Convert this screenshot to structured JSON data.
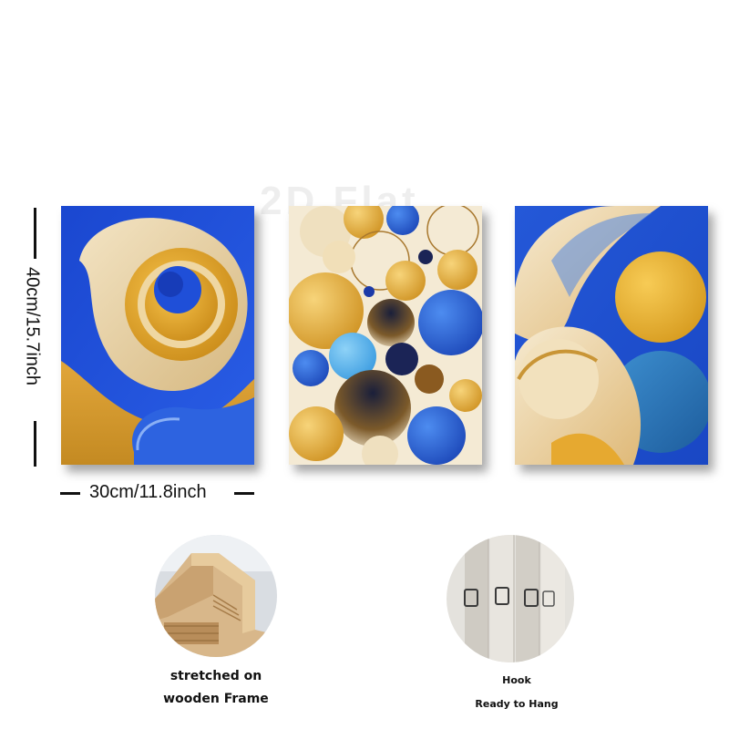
{
  "watermark": "2D Flat",
  "dimensions": {
    "height_label": "40cm/15.7inch",
    "width_label": "30cm/11.8inch"
  },
  "panels": [
    {
      "name": "blue-gold-spiral-panel",
      "colors": [
        "#1f4fd8",
        "#e0a22a",
        "#efdcb4"
      ]
    },
    {
      "name": "gold-blue-circles-panel",
      "colors": [
        "#f3e7cc",
        "#e2ae35",
        "#2c63d4",
        "#1b2456"
      ]
    },
    {
      "name": "blue-gold-waves-panel",
      "colors": [
        "#1d56d6",
        "#e6ad2e",
        "#f0e0bf",
        "#2a78b8"
      ]
    }
  ],
  "features": [
    {
      "line1": "stretched on",
      "line2": "wooden Frame"
    },
    {
      "line1": "Hook",
      "line2": "Ready to Hang"
    }
  ]
}
